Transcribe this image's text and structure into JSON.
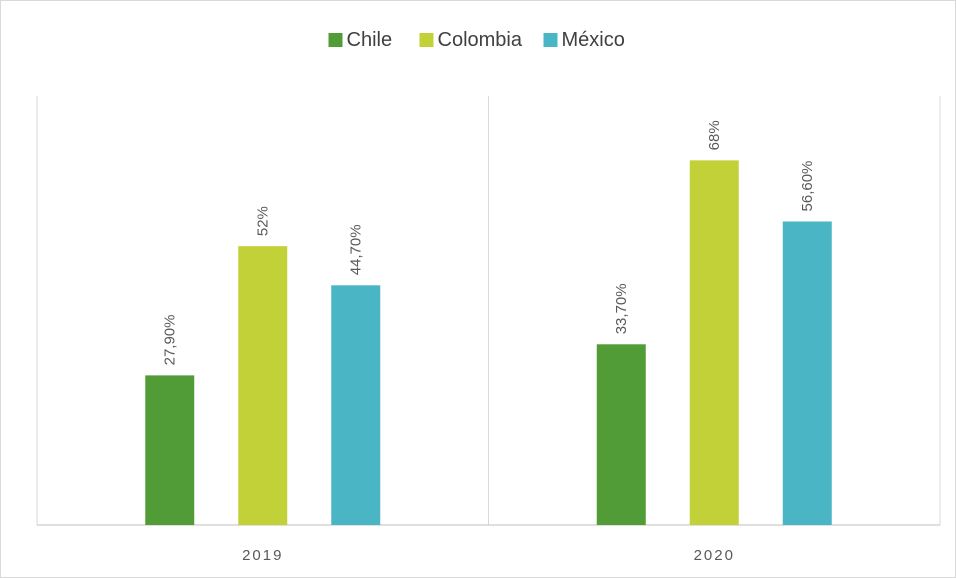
{
  "chart_data": {
    "type": "bar",
    "title": "",
    "xlabel": "",
    "ylabel": "",
    "categories": [
      "2019",
      "2020"
    ],
    "series": [
      {
        "name": "Chile",
        "color": "#529c37",
        "values": [
          27.9,
          33.7
        ],
        "labels": [
          "27,90%",
          "33,70%"
        ]
      },
      {
        "name": "Colombia",
        "color": "#c3d138",
        "values": [
          52,
          68
        ],
        "labels": [
          "52%",
          "68%"
        ]
      },
      {
        "name": "México",
        "color": "#4ab5c4",
        "values": [
          44.7,
          56.6
        ],
        "labels": [
          "44,70%",
          "56,60%"
        ]
      }
    ],
    "ylim": [
      0,
      80
    ],
    "grid": false,
    "legend": "top-center"
  }
}
